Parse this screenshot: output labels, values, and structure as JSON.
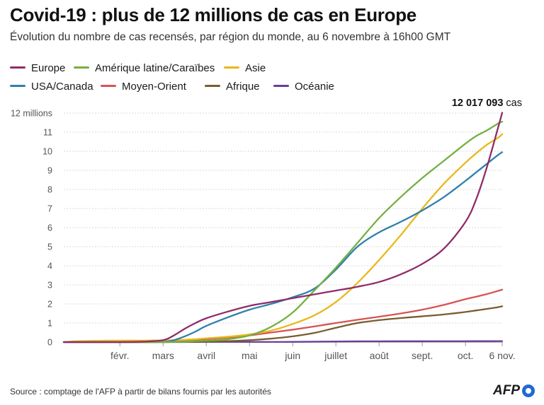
{
  "title": "Covid-19 : plus de 12 millions de cas en Europe",
  "subtitle": "Évolution du nombre de cas recensés, par région du monde, au 6 novembre à 16h00 GMT",
  "source": "Source : comptage de l'AFP à partir de bilans fournis par les autorités",
  "logo_text": "AFP",
  "annotation": {
    "value": "12 017 093",
    "unit": " cas"
  },
  "chart_data": {
    "type": "line",
    "title": "Covid-19 : plus de 12 millions de cas en Europe",
    "xlabel": "",
    "ylabel": "",
    "unit": "millions de cas",
    "ylim": [
      0,
      12
    ],
    "grid": true,
    "legend_position": "top-left",
    "yticks": [
      {
        "value": 0,
        "label": "0"
      },
      {
        "value": 1,
        "label": "1"
      },
      {
        "value": 2,
        "label": "2"
      },
      {
        "value": 3,
        "label": "3"
      },
      {
        "value": 4,
        "label": "4"
      },
      {
        "value": 5,
        "label": "5"
      },
      {
        "value": 6,
        "label": "6"
      },
      {
        "value": 7,
        "label": "7"
      },
      {
        "value": 8,
        "label": "8"
      },
      {
        "value": 9,
        "label": "9"
      },
      {
        "value": 10,
        "label": "10"
      },
      {
        "value": 11,
        "label": "11"
      },
      {
        "value": 12,
        "label": "12 millions"
      }
    ],
    "xticks": [
      {
        "value": 1,
        "label": "févr."
      },
      {
        "value": 2,
        "label": "mars"
      },
      {
        "value": 3,
        "label": "avril"
      },
      {
        "value": 4,
        "label": "mai"
      },
      {
        "value": 5,
        "label": "juin"
      },
      {
        "value": 6,
        "label": "juillet"
      },
      {
        "value": 7,
        "label": "août"
      },
      {
        "value": 8,
        "label": "sept."
      },
      {
        "value": 9,
        "label": "oct."
      },
      {
        "value": 9.85,
        "label": "6 nov."
      }
    ],
    "xrange": [
      -0.3,
      9.85
    ],
    "x": [
      -0.3,
      0,
      0.5,
      1,
      1.5,
      2,
      2.25,
      2.5,
      2.75,
      3,
      3.5,
      4,
      4.5,
      5,
      5.5,
      6,
      6.5,
      7,
      7.5,
      8,
      8.5,
      9,
      9.25,
      9.5,
      9.75,
      9.85
    ],
    "series": [
      {
        "name": "Europe",
        "color": "#8e2d68",
        "values": [
          0,
          0,
          0,
          0,
          0.02,
          0.1,
          0.35,
          0.7,
          1.0,
          1.25,
          1.6,
          1.9,
          2.1,
          2.3,
          2.5,
          2.7,
          2.9,
          3.15,
          3.55,
          4.1,
          4.9,
          6.3,
          7.5,
          9.2,
          11.2,
          12.02
        ]
      },
      {
        "name": "Amérique latine/Caraïbes",
        "color": "#74b043",
        "values": [
          0,
          0,
          0,
          0,
          0,
          0,
          0.01,
          0.02,
          0.05,
          0.08,
          0.15,
          0.35,
          0.8,
          1.55,
          2.7,
          3.9,
          5.2,
          6.5,
          7.6,
          8.6,
          9.5,
          10.4,
          10.8,
          11.1,
          11.45,
          11.55
        ]
      },
      {
        "name": "Asie",
        "color": "#e8b81c",
        "values": [
          0,
          0.05,
          0.07,
          0.08,
          0.08,
          0.09,
          0.1,
          0.12,
          0.15,
          0.2,
          0.28,
          0.4,
          0.6,
          0.95,
          1.4,
          2.1,
          3.1,
          4.3,
          5.6,
          7.0,
          8.3,
          9.4,
          9.9,
          10.35,
          10.7,
          10.9
        ]
      },
      {
        "name": "USA/Canada",
        "color": "#2f7fae",
        "values": [
          0,
          0,
          0,
          0,
          0,
          0.01,
          0.1,
          0.3,
          0.55,
          0.85,
          1.3,
          1.7,
          2.0,
          2.35,
          2.8,
          3.8,
          5.0,
          5.75,
          6.3,
          6.9,
          7.6,
          8.45,
          8.9,
          9.35,
          9.8,
          9.95
        ]
      },
      {
        "name": "Moyen-Orient",
        "color": "#d65454",
        "values": [
          0,
          0,
          0,
          0,
          0,
          0.01,
          0.04,
          0.08,
          0.12,
          0.16,
          0.24,
          0.35,
          0.5,
          0.65,
          0.82,
          1.0,
          1.17,
          1.33,
          1.5,
          1.7,
          1.95,
          2.25,
          2.38,
          2.52,
          2.68,
          2.75
        ]
      },
      {
        "name": "Afrique",
        "color": "#7a5c2e",
        "values": [
          0,
          0,
          0,
          0,
          0,
          0,
          0.01,
          0.01,
          0.02,
          0.03,
          0.05,
          0.1,
          0.18,
          0.3,
          0.48,
          0.75,
          1.0,
          1.15,
          1.26,
          1.35,
          1.45,
          1.58,
          1.66,
          1.74,
          1.83,
          1.88
        ]
      },
      {
        "name": "Océanie",
        "color": "#6a3d9a",
        "values": [
          0,
          0,
          0,
          0,
          0,
          0,
          0,
          0.005,
          0.007,
          0.008,
          0.009,
          0.009,
          0.01,
          0.012,
          0.02,
          0.03,
          0.04,
          0.043,
          0.044,
          0.045,
          0.046,
          0.047,
          0.048,
          0.049,
          0.05,
          0.05
        ]
      }
    ]
  }
}
